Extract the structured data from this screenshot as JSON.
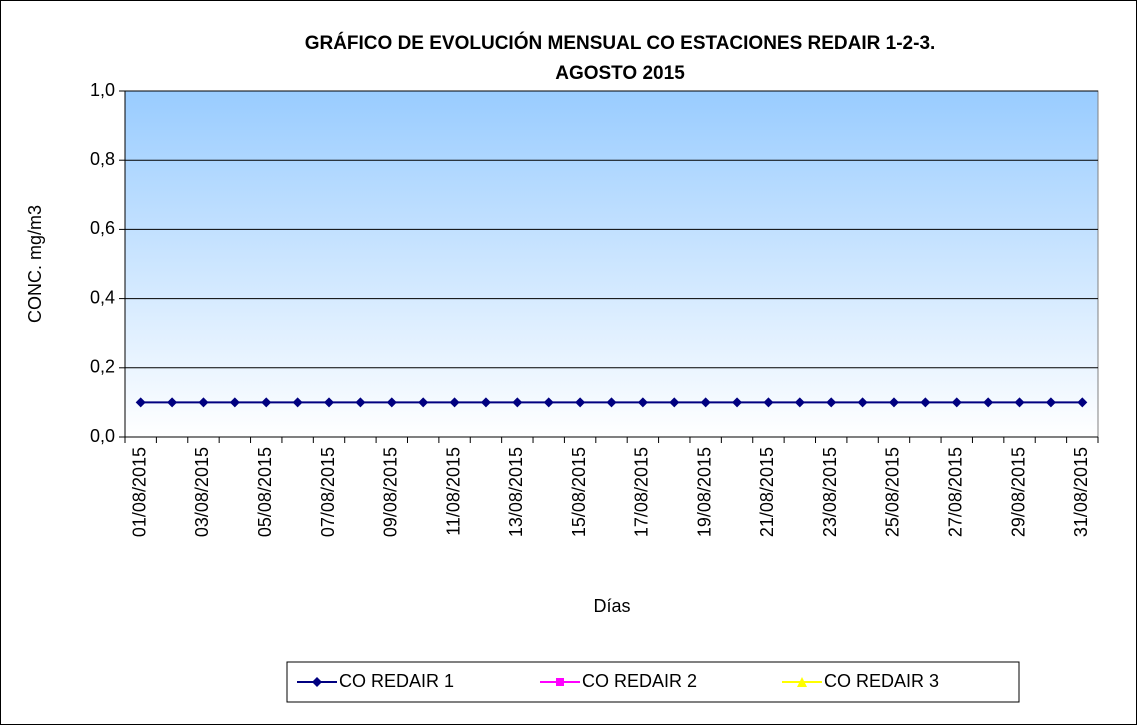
{
  "chart_data": {
    "type": "line",
    "title": [
      "GRÁFICO DE EVOLUCIÓN MENSUAL CO ESTACIONES REDAIR 1-2-3.",
      "AGOSTO 2015"
    ],
    "y_label": "CONC. mg/m3",
    "x_label": "Días",
    "categories": [
      "01/08/2015",
      null,
      "03/08/2015",
      null,
      "05/08/2015",
      null,
      "07/08/2015",
      null,
      "09/08/2015",
      null,
      "11/08/2015",
      null,
      "13/08/2015",
      null,
      "15/08/2015",
      null,
      "17/08/2015",
      null,
      "19/08/2015",
      null,
      "21/08/2015",
      null,
      "23/08/2015",
      null,
      "25/08/2015",
      null,
      "27/08/2015",
      null,
      "29/08/2015",
      null,
      "31/08/2015"
    ],
    "series": [
      {
        "name": "CO REDAIR 1",
        "color": "#000080",
        "marker": "diamond",
        "values": [
          0.1,
          0.1,
          0.1,
          0.1,
          0.1,
          0.1,
          0.1,
          0.1,
          0.1,
          0.1,
          0.1,
          0.1,
          0.1,
          0.1,
          0.1,
          0.1,
          0.1,
          0.1,
          0.1,
          0.1,
          0.1,
          0.1,
          0.1,
          0.1,
          0.1,
          0.1,
          0.1,
          0.1,
          0.1,
          0.1,
          0.1
        ]
      },
      {
        "name": "CO REDAIR 2",
        "color": "#ff00ff",
        "marker": "square",
        "values": [
          null,
          null,
          null,
          null,
          null,
          null,
          null,
          null,
          null,
          null,
          null,
          null,
          null,
          null,
          null,
          null,
          null,
          null,
          null,
          null,
          null,
          null,
          null,
          null,
          null,
          null,
          null,
          null,
          null,
          null,
          null
        ]
      },
      {
        "name": "CO  REDAIR 3",
        "color": "#ffff00",
        "marker": "triangle",
        "values": [
          null,
          null,
          null,
          null,
          null,
          null,
          null,
          null,
          null,
          null,
          null,
          null,
          null,
          null,
          null,
          null,
          null,
          null,
          null,
          null,
          null,
          null,
          null,
          null,
          null,
          null,
          null,
          null,
          null,
          null,
          null
        ]
      }
    ],
    "ylim": [
      0,
      1
    ],
    "yticks": [
      {
        "value": 0,
        "label": "0,0"
      },
      {
        "value": 0.2,
        "label": "0,2"
      },
      {
        "value": 0.4,
        "label": "0,4"
      },
      {
        "value": 0.6,
        "label": "0,6"
      },
      {
        "value": 0.8,
        "label": "0,8"
      },
      {
        "value": 1,
        "label": "1,0"
      }
    ],
    "grid": true,
    "legend": "bottom"
  }
}
